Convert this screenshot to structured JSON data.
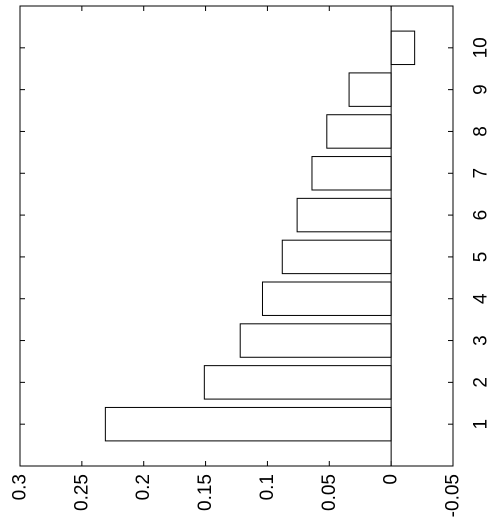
{
  "chart_data": {
    "type": "bar",
    "orientation": "horizontal",
    "categories": [
      "1",
      "2",
      "3",
      "4",
      "5",
      "6",
      "7",
      "8",
      "9",
      "10"
    ],
    "values": [
      0.231,
      0.151,
      0.122,
      0.104,
      0.088,
      0.076,
      0.064,
      0.052,
      0.034,
      -0.019
    ],
    "value_axis_ticks": [
      "0.3",
      "0.25",
      "0.2",
      "0.15",
      "0.1",
      "0.05",
      "0",
      "-0.05"
    ],
    "value_axis_reversed": true,
    "xlim": [
      -0.05,
      0.3
    ],
    "category_axis_ticks": [
      "1",
      "2",
      "3",
      "4",
      "5",
      "6",
      "7",
      "8",
      "9",
      "10"
    ],
    "grid": false,
    "legend": "none",
    "colors": {
      "bar_fill": "#ffffff",
      "bar_edge": "#000000",
      "axes": "#000000"
    }
  }
}
